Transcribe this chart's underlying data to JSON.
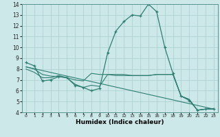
{
  "title": "",
  "xlabel": "Humidex (Indice chaleur)",
  "ylabel": "",
  "xlim": [
    -0.5,
    23.5
  ],
  "ylim": [
    4,
    14
  ],
  "yticks": [
    4,
    5,
    6,
    7,
    8,
    9,
    10,
    11,
    12,
    13,
    14
  ],
  "xticks": [
    0,
    1,
    2,
    3,
    4,
    5,
    6,
    7,
    8,
    9,
    10,
    11,
    12,
    13,
    14,
    15,
    16,
    17,
    18,
    19,
    20,
    21,
    22,
    23
  ],
  "background_color": "#cce8e8",
  "line_color": "#2e7d72",
  "grid_color": "#aacece",
  "line1_x": [
    0,
    1,
    2,
    3,
    4,
    5,
    6,
    7,
    8,
    9,
    10,
    11,
    12,
    13,
    14,
    15,
    16,
    17,
    18,
    19,
    20,
    21,
    22,
    23
  ],
  "line1_y": [
    8.6,
    8.3,
    6.9,
    7.0,
    7.3,
    7.2,
    6.5,
    6.3,
    6.0,
    6.2,
    9.5,
    11.5,
    12.4,
    13.0,
    12.9,
    14.0,
    13.3,
    10.0,
    7.6,
    5.5,
    5.1,
    4.2,
    4.3,
    4.3
  ],
  "line2_x": [
    0,
    1,
    2,
    3,
    4,
    5,
    6,
    7,
    8,
    9,
    10,
    11,
    12,
    13,
    14,
    15,
    16,
    17,
    18,
    19,
    20,
    21,
    22,
    23
  ],
  "line2_y": [
    8.2,
    8.0,
    7.5,
    7.35,
    7.3,
    7.2,
    7.0,
    6.9,
    7.6,
    7.5,
    7.5,
    7.5,
    7.5,
    7.4,
    7.4,
    7.4,
    7.5,
    7.5,
    7.5,
    5.5,
    5.2,
    4.2,
    4.3,
    4.35
  ],
  "line3_x": [
    0,
    1,
    2,
    3,
    4,
    5,
    6,
    7,
    8,
    9,
    10,
    11,
    12,
    13,
    14,
    15,
    16,
    17,
    18,
    19,
    20,
    21,
    22,
    23
  ],
  "line3_y": [
    8.0,
    7.7,
    7.2,
    7.2,
    7.4,
    7.2,
    6.6,
    6.3,
    6.5,
    6.4,
    7.5,
    7.4,
    7.4,
    7.4,
    7.4,
    7.4,
    7.5,
    7.5,
    7.5,
    5.5,
    5.2,
    4.2,
    4.3,
    4.35
  ],
  "line4_x": [
    0,
    23
  ],
  "line4_y": [
    8.2,
    4.3
  ]
}
